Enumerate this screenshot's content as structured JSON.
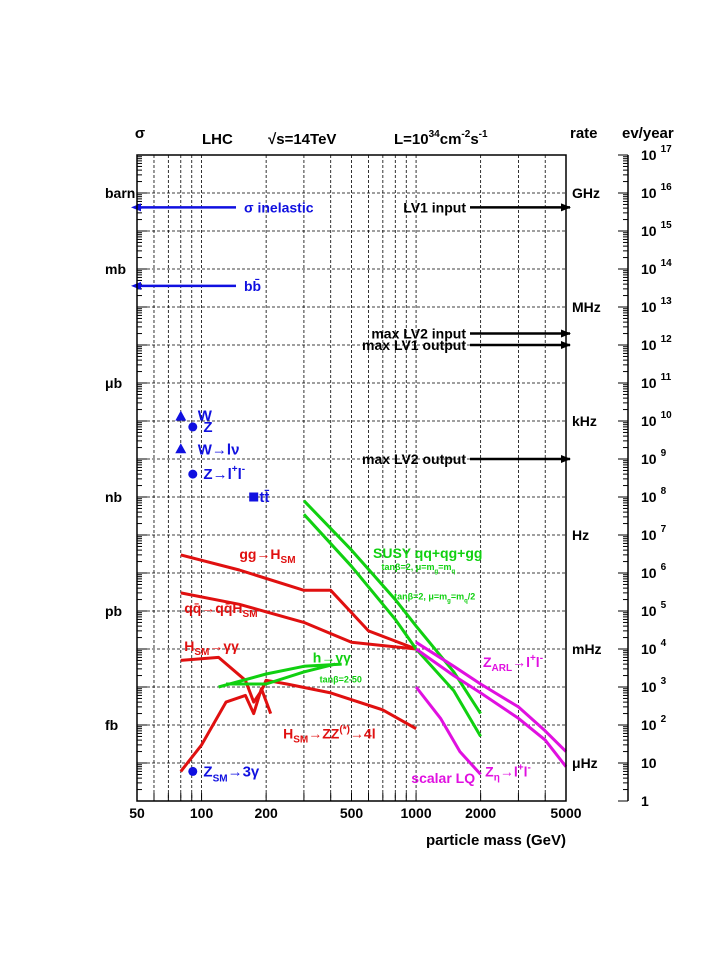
{
  "chart_data": {
    "type": "line",
    "header": {
      "sigma": "σ",
      "lhc": "LHC",
      "sqrt_s": "√s=14TeV",
      "lumi_prefix": "L=10",
      "lumi_exp1": "34",
      "lumi_unit": "cm",
      "lumi_exp2": "-2",
      "lumi_unit2": "s",
      "lumi_exp3": "-1",
      "rate": "rate",
      "ev_year": "ev/year"
    },
    "xlabel": "particle mass (GeV)",
    "x_scale": "log",
    "xlim": [
      50,
      5000
    ],
    "x_ticks": [
      "50",
      "100",
      "200",
      "500",
      "1000",
      "2000",
      "5000"
    ],
    "y_scale": "log",
    "ylim_ev_year": [
      1,
      1e+17
    ],
    "y_left_labels": [
      {
        "label": "barn",
        "ev": 1e+16
      },
      {
        "label": "mb",
        "ev": 100000000000000.0
      },
      {
        "label": "μb",
        "ev": 100000000000.0
      },
      {
        "label": "nb",
        "ev": 100000000.0
      },
      {
        "label": "pb",
        "ev": 100000.0
      },
      {
        "label": "fb",
        "ev": 100
      }
    ],
    "y_rate_labels": [
      {
        "label": "GHz",
        "ev": 1e+16
      },
      {
        "label": "MHz",
        "ev": 10000000000000.0
      },
      {
        "label": "kHz",
        "ev": 10000000000.0
      },
      {
        "label": "Hz",
        "ev": 10000000.0
      },
      {
        "label": "mHz",
        "ev": 10000.0
      },
      {
        "label": "μHz",
        "ev": 10
      }
    ],
    "y_right_ticks": [
      {
        "base": "10",
        "exp": "17"
      },
      {
        "base": "10",
        "exp": "16"
      },
      {
        "base": "10",
        "exp": "15"
      },
      {
        "base": "10",
        "exp": "14"
      },
      {
        "base": "10",
        "exp": "13"
      },
      {
        "base": "10",
        "exp": "12"
      },
      {
        "base": "10",
        "exp": "11"
      },
      {
        "base": "10",
        "exp": "10"
      },
      {
        "base": "10",
        "exp": "9"
      },
      {
        "base": "10",
        "exp": "8"
      },
      {
        "base": "10",
        "exp": "7"
      },
      {
        "base": "10",
        "exp": "6"
      },
      {
        "base": "10",
        "exp": "5"
      },
      {
        "base": "10",
        "exp": "4"
      },
      {
        "base": "10",
        "exp": "3"
      },
      {
        "base": "10",
        "exp": "2"
      },
      {
        "base": "10",
        "exp": ""
      },
      {
        "base": "1",
        "exp": ""
      }
    ],
    "colors": {
      "blue": "#1010e0",
      "red": "#e01010",
      "green": "#10d010",
      "magenta": "#e010e0",
      "black": "#000000"
    },
    "arrows_left": [
      {
        "label": "σ inelastic",
        "ev": 4200000000000000.0
      },
      {
        "label": "bb̄",
        "ev": 36000000000000.0
      }
    ],
    "arrows_right": [
      {
        "label": "LV1 input",
        "ev": 4200000000000000.0
      },
      {
        "label": "max LV2 input",
        "ev": 2000000000000.0
      },
      {
        "label": "max LV1 output",
        "ev": 1000000000000.0
      },
      {
        "label": "max LV2 output",
        "ev": 1000000000.0
      }
    ],
    "points": [
      {
        "shape": "triangle",
        "mass": 80,
        "ev": 13000000000.0,
        "color": "blue"
      },
      {
        "shape": "circle",
        "mass": 91,
        "ev": 7000000000.0,
        "color": "blue"
      },
      {
        "shape": "triangle",
        "mass": 80,
        "ev": 1800000000.0,
        "color": "blue"
      },
      {
        "shape": "circle",
        "mass": 91,
        "ev": 400000000.0,
        "color": "blue"
      },
      {
        "shape": "square",
        "mass": 175,
        "ev": 100000000.0,
        "color": "blue"
      },
      {
        "shape": "circle",
        "mass": 91,
        "ev": 6,
        "color": "blue"
      }
    ],
    "point_labels": [
      {
        "parts": [
          {
            "t": "W"
          }
        ],
        "mass": 96,
        "ev": 14000000000.0
      },
      {
        "parts": [
          {
            "t": "Z"
          }
        ],
        "mass": 102,
        "ev": 7000000000.0
      },
      {
        "parts": [
          {
            "t": "W→lν"
          }
        ],
        "mass": 96,
        "ev": 1800000000.0
      },
      {
        "parts": [
          {
            "t": "Z→l"
          },
          {
            "t": "+",
            "sup": true
          },
          {
            "t": "l"
          },
          {
            "t": "-",
            "sup": true
          }
        ],
        "mass": 102,
        "ev": 400000000.0
      },
      {
        "parts": [
          {
            "t": "tt̄"
          }
        ],
        "mass": 186,
        "ev": 100000000.0
      },
      {
        "parts": [
          {
            "t": "Z"
          },
          {
            "t": "SM",
            "sub": true
          },
          {
            "t": "→3γ"
          }
        ],
        "mass": 102,
        "ev": 6
      }
    ],
    "series": [
      {
        "color": "red",
        "x": [
          80,
          150,
          300,
          400,
          600,
          1000
        ],
        "y": [
          3000000.0,
          1200000.0,
          350000.0,
          350000.0,
          30000.0,
          10000.0
        ]
      },
      {
        "color": "red",
        "x": [
          80,
          150,
          300,
          500,
          1000
        ],
        "y": [
          300000.0,
          150000.0,
          50000.0,
          15000.0,
          10000.0
        ]
      },
      {
        "color": "red",
        "x": [
          80,
          120,
          160,
          175,
          190,
          200,
          250,
          400,
          700,
          1000
        ],
        "y": [
          5000.0,
          6000.0,
          1500.0,
          400,
          800,
          1500.0,
          1200.0,
          700,
          250,
          80
        ]
      },
      {
        "color": "red",
        "x": [
          80,
          100,
          130,
          160,
          175,
          190,
          210
        ],
        "y": [
          6,
          30,
          400,
          600,
          200,
          900,
          200
        ]
      },
      {
        "color": "green",
        "x": [
          300,
          500,
          800,
          1000,
          1500,
          2000
        ],
        "y": [
          80000000.0,
          4000000.0,
          200000.0,
          40000.0,
          2500.0,
          200
        ]
      },
      {
        "color": "green",
        "x": [
          300,
          500,
          800,
          1000,
          1500,
          2000
        ],
        "y": [
          35000000.0,
          1500000.0,
          60000.0,
          10000.0,
          800,
          50
        ]
      },
      {
        "color": "green",
        "x": [
          120,
          200,
          300,
          450
        ],
        "y": [
          1000.0,
          2200.0,
          3500.0,
          4000.0
        ]
      },
      {
        "color": "green",
        "x": [
          130,
          200,
          300,
          420
        ],
        "y": [
          1200.0,
          1200.0,
          2500.0,
          4000.0
        ]
      },
      {
        "color": "magenta",
        "x": [
          1000,
          1500,
          2000,
          3000,
          4000,
          5000
        ],
        "y": [
          15000.0,
          3500.0,
          1200.0,
          300,
          70,
          20
        ]
      },
      {
        "color": "magenta",
        "x": [
          1000,
          1500,
          2000,
          3000,
          4000,
          5000
        ],
        "y": [
          10000.0,
          2000.0,
          700,
          150,
          40,
          8
        ]
      },
      {
        "color": "magenta",
        "x": [
          1000,
          1300,
          1600,
          2000
        ],
        "y": [
          1000.0,
          150,
          20,
          5
        ]
      }
    ],
    "curve_labels": [
      {
        "color": "red",
        "parts": [
          {
            "t": "gg→H"
          },
          {
            "t": "SM",
            "sub": true
          }
        ],
        "mass": 150,
        "ev": 3200000.0,
        "size": 14
      },
      {
        "color": "red",
        "parts": [
          {
            "t": "qq̄→qq̄H"
          },
          {
            "t": "SM",
            "sub": true
          }
        ],
        "mass": 83,
        "ev": 120000.0,
        "size": 14
      },
      {
        "color": "red",
        "parts": [
          {
            "t": "H"
          },
          {
            "t": "SM",
            "sub": true
          },
          {
            "t": "→γγ"
          }
        ],
        "mass": 83,
        "ev": 12000.0,
        "size": 14
      },
      {
        "color": "red",
        "parts": [
          {
            "t": "H"
          },
          {
            "t": "SM",
            "sub": true
          },
          {
            "t": "→ZZ"
          },
          {
            "t": "(*)",
            "sup": true
          },
          {
            "t": "→4l"
          }
        ],
        "mass": 240,
        "ev": 60,
        "size": 14
      },
      {
        "color": "green",
        "parts": [
          {
            "t": "SUSY qq+qg+gg"
          }
        ],
        "mass": 630,
        "ev": 3400000.0,
        "size": 14
      },
      {
        "color": "green",
        "parts": [
          {
            "t": "tanβ=2, μ=m"
          },
          {
            "t": "g",
            "sub": true
          },
          {
            "t": "=m"
          },
          {
            "t": "q",
            "sub": true
          }
        ],
        "mass": 690,
        "ev": 1600000.0,
        "size": 9
      },
      {
        "color": "green",
        "parts": [
          {
            "t": "tanβ=2, μ=m"
          },
          {
            "t": "g",
            "sub": true
          },
          {
            "t": "=m"
          },
          {
            "t": "q",
            "sub": true
          },
          {
            "t": "/2"
          }
        ],
        "mass": 790,
        "ev": 270000.0,
        "size": 9
      },
      {
        "color": "green",
        "parts": [
          {
            "t": "h→γγ"
          }
        ],
        "mass": 330,
        "ev": 6000.0,
        "size": 14
      },
      {
        "color": "green",
        "parts": [
          {
            "t": "tanβ=2-50"
          }
        ],
        "mass": 355,
        "ev": 1800.0,
        "size": 9
      },
      {
        "color": "magenta",
        "parts": [
          {
            "t": "Z"
          },
          {
            "t": "ARL",
            "sub": true
          },
          {
            "t": "→l"
          },
          {
            "t": "+",
            "sup": true
          },
          {
            "t": "l"
          },
          {
            "t": "-",
            "sup": true
          }
        ],
        "mass": 2050,
        "ev": 4500.0,
        "size": 14
      },
      {
        "color": "magenta",
        "parts": [
          {
            "t": "scalar LQ"
          }
        ],
        "mass": 950,
        "ev": 4,
        "size": 14
      },
      {
        "color": "magenta",
        "parts": [
          {
            "t": "Z"
          },
          {
            "t": "η",
            "sub": true
          },
          {
            "t": "→l"
          },
          {
            "t": "+",
            "sup": true
          },
          {
            "t": "l"
          },
          {
            "t": "-",
            "sup": true
          }
        ],
        "mass": 2100,
        "ev": 6,
        "size": 14
      }
    ]
  }
}
